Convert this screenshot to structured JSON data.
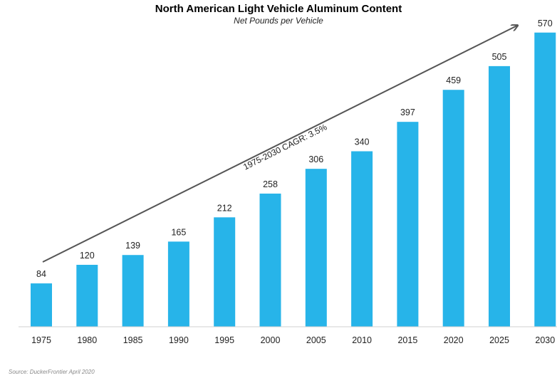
{
  "chart_data": {
    "type": "bar",
    "title": "North American Light Vehicle Aluminum Content",
    "subtitle": "Net Pounds per Vehicle",
    "categories": [
      "1975",
      "1980",
      "1985",
      "1990",
      "1995",
      "2000",
      "2005",
      "2010",
      "2015",
      "2020",
      "2025",
      "2030"
    ],
    "values": [
      84,
      120,
      139,
      165,
      212,
      258,
      306,
      340,
      397,
      459,
      505,
      570
    ],
    "xlabel": "",
    "ylabel": "",
    "ylim": [
      0,
      600
    ],
    "grid": false,
    "data_labels": true,
    "bar_color": "#27B4E9",
    "annotation": "1975-2030 CAGR: 3.5%",
    "source": "Source: DuckerFrontier April 2020"
  }
}
